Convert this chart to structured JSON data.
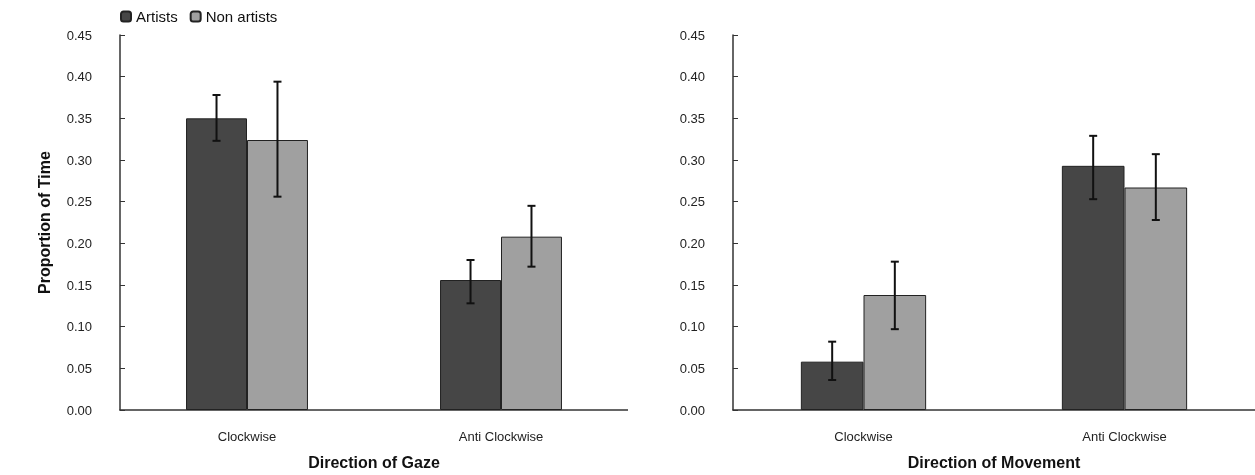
{
  "chart_data": [
    {
      "type": "bar",
      "xlabel": "Direction of Gaze",
      "ylabel": "Proportion of Time",
      "categories": [
        "Clockwise",
        "Anti Clockwise"
      ],
      "series": [
        {
          "name": "Artists",
          "color": "#464646",
          "values": [
            0.35,
            0.156
          ],
          "errors": [
            [
              0.323,
              0.378
            ],
            [
              0.128,
              0.18
            ]
          ]
        },
        {
          "name": "Non artists",
          "color": "#a0a0a0",
          "values": [
            0.324,
            0.208
          ],
          "errors": [
            [
              0.256,
              0.394
            ],
            [
              0.172,
              0.245
            ]
          ]
        }
      ],
      "ylim": [
        0,
        0.45
      ],
      "yticks": [
        {
          "value": 0,
          "label": "0.00"
        },
        {
          "value": 0.05,
          "label": "0.05"
        },
        {
          "value": 0.1,
          "label": "0.10"
        },
        {
          "value": 0.15,
          "label": "0.15"
        },
        {
          "value": 0.2,
          "label": "0.20"
        },
        {
          "value": 0.25,
          "label": "0.25"
        },
        {
          "value": 0.3,
          "label": "0.30"
        },
        {
          "value": 0.35,
          "label": "0.35"
        },
        {
          "value": 0.4,
          "label": "0.40"
        },
        {
          "value": 0.45,
          "label": "0.45"
        }
      ],
      "grid": false,
      "legend": "top left"
    },
    {
      "type": "bar",
      "xlabel": "Direction of Movement",
      "categories": [
        "Clockwise",
        "Anti Clockwise"
      ],
      "series": [
        {
          "color": "#464646",
          "values": [
            0.058,
            0.293
          ],
          "errors": [
            [
              0.036,
              0.082
            ],
            [
              0.253,
              0.329
            ]
          ]
        },
        {
          "color": "#a0a0a0",
          "values": [
            0.138,
            0.267
          ],
          "errors": [
            [
              0.097,
              0.178
            ],
            [
              0.228,
              0.307
            ]
          ]
        }
      ],
      "ylim": [
        0,
        0.45
      ],
      "yticks": [
        {
          "value": 0,
          "label": "0.00"
        },
        {
          "value": 0.05,
          "label": "0.05"
        },
        {
          "value": 0.1,
          "label": "0.10"
        },
        {
          "value": 0.15,
          "label": "0.15"
        },
        {
          "value": 0.2,
          "label": "0.20"
        },
        {
          "value": 0.25,
          "label": "0.25"
        },
        {
          "value": 0.3,
          "label": "0.30"
        },
        {
          "value": 0.35,
          "label": "0.35"
        },
        {
          "value": 0.4,
          "label": "0.40"
        },
        {
          "value": 0.45,
          "label": "0.45"
        }
      ],
      "grid": false
    }
  ]
}
